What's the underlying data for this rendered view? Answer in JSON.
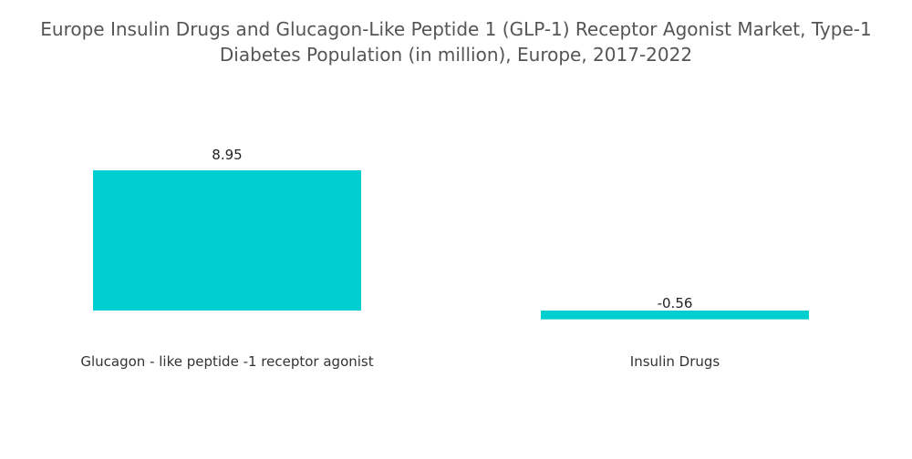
{
  "chart_data": {
    "type": "bar",
    "title": "Europe Insulin Drugs and Glucagon-Like Peptide 1 (GLP-1) Receptor Agonist Market, Type-1 Diabetes Population (in million), Europe, 2017-2022",
    "categories": [
      "Glucagon - like peptide -1 receptor agonist",
      "Insulin Drugs"
    ],
    "values": [
      8.95,
      -0.56
    ],
    "value_labels": [
      "8.95",
      "-0.56"
    ],
    "xlabel": "",
    "ylabel": "",
    "grid": false,
    "legend": "none",
    "colors": {
      "bar": "#00CED1",
      "text": "#333333",
      "title": "#555555"
    }
  }
}
